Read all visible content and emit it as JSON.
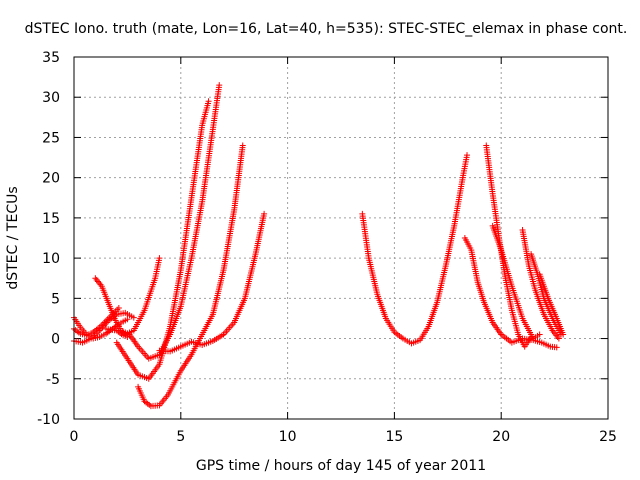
{
  "chart_data": {
    "type": "scatter",
    "title": "dSTEC Iono. truth (mate, Lon=16, Lat=40, h=535): STEC-STEC_elemax in phase cont.",
    "xlabel": "GPS time / hours of day 145 of year 2011",
    "ylabel": "dSTEC  / TECUs",
    "xlim": [
      0,
      25
    ],
    "ylim": [
      -10,
      35
    ],
    "xticks": [
      "0",
      "5",
      "10",
      "15",
      "20",
      "25"
    ],
    "yticks": [
      "-10",
      "-5",
      "0",
      "5",
      "10",
      "15",
      "20",
      "25",
      "30",
      "35"
    ],
    "grid": true,
    "legend": "none",
    "marker": "+",
    "color": "#ff0000",
    "series": [
      {
        "x": [
          0.0,
          0.3,
          0.6,
          0.9,
          1.2,
          1.5,
          1.8,
          2.1,
          2.5
        ],
        "y": [
          2.6,
          1.4,
          0.5,
          0.0,
          0.2,
          0.6,
          1.2,
          1.8,
          2.4
        ]
      },
      {
        "x": [
          0.0,
          0.4,
          0.8,
          1.2,
          1.6,
          2.0,
          2.4,
          2.8
        ],
        "y": [
          -0.3,
          -0.5,
          0.0,
          1.0,
          2.2,
          3.0,
          3.2,
          2.6
        ]
      },
      {
        "x": [
          0.0,
          0.3,
          0.6,
          0.9,
          1.2,
          1.5,
          1.8,
          2.1
        ],
        "y": [
          1.2,
          0.6,
          0.4,
          0.8,
          1.4,
          2.2,
          3.0,
          3.8
        ]
      },
      {
        "x": [
          1.0,
          1.3,
          1.6,
          1.9,
          2.2,
          2.5
        ],
        "y": [
          7.5,
          6.5,
          4.5,
          2.5,
          1.0,
          0.2
        ]
      },
      {
        "x": [
          1.5,
          2.0,
          2.3,
          2.8,
          3.3,
          3.8,
          4.0
        ],
        "y": [
          1.2,
          1.0,
          0.4,
          1.0,
          3.5,
          7.5,
          10.0
        ]
      },
      {
        "x": [
          2.0,
          2.5,
          3.0,
          3.5,
          4.0,
          4.5,
          5.0,
          5.5,
          6.0,
          6.3
        ],
        "y": [
          -0.5,
          -2.5,
          -4.5,
          -5.0,
          -3.2,
          1.5,
          8.5,
          17.5,
          26.5,
          29.5
        ]
      },
      {
        "x": [
          2.2,
          2.6,
          3.0,
          3.5,
          4.0,
          4.5,
          5.0,
          5.5,
          6.0,
          6.5,
          6.8
        ],
        "y": [
          1.0,
          0.5,
          -1.0,
          -2.5,
          -2.0,
          0.5,
          4.0,
          10.0,
          17.0,
          26.0,
          31.5
        ]
      },
      {
        "x": [
          3.0,
          3.3,
          3.6,
          4.0,
          4.4,
          5.0,
          5.5,
          6.0,
          6.5,
          7.0,
          7.5,
          7.9
        ],
        "y": [
          -6.0,
          -7.8,
          -8.4,
          -8.3,
          -7.0,
          -4.0,
          -2.0,
          0.5,
          3.0,
          8.5,
          16.0,
          24.0
        ]
      },
      {
        "x": [
          4.0,
          4.5,
          5.0,
          5.5,
          6.0,
          6.5,
          7.0,
          7.5,
          8.0,
          8.5,
          8.9
        ],
        "y": [
          -1.5,
          -1.6,
          -1.0,
          -0.4,
          -0.8,
          -0.3,
          0.5,
          2.0,
          5.0,
          10.5,
          15.5
        ]
      },
      {
        "x": [
          13.5,
          13.8,
          14.2,
          14.6,
          15.0,
          15.4,
          15.8,
          16.2,
          16.6,
          17.0,
          17.4,
          17.8,
          18.2,
          18.4
        ],
        "y": [
          15.5,
          10.0,
          5.5,
          2.5,
          0.8,
          0.0,
          -0.6,
          -0.2,
          1.5,
          4.5,
          9.0,
          14.0,
          20.0,
          22.8
        ]
      },
      {
        "x": [
          18.3,
          18.6,
          18.9,
          19.2,
          19.6,
          20.0,
          20.5,
          21.0,
          21.5,
          21.9,
          22.3,
          22.6
        ],
        "y": [
          12.5,
          11.0,
          7.0,
          4.5,
          2.0,
          0.5,
          -0.5,
          0.0,
          -0.2,
          -0.5,
          -1.0,
          -1.1
        ]
      },
      {
        "x": [
          19.3,
          19.6,
          19.9,
          20.2,
          20.5,
          20.8,
          21.1,
          21.4
        ],
        "y": [
          24.0,
          18.0,
          12.5,
          7.5,
          3.5,
          0.5,
          -1.0,
          0.2
        ]
      },
      {
        "x": [
          19.6,
          20.0,
          20.5,
          21.0,
          21.5,
          21.8
        ],
        "y": [
          14.0,
          11.0,
          6.5,
          2.5,
          0.0,
          0.5
        ]
      },
      {
        "x": [
          21.0,
          21.3,
          21.6,
          22.0,
          22.4,
          22.7
        ],
        "y": [
          13.5,
          9.0,
          6.0,
          3.0,
          1.0,
          0.0
        ]
      },
      {
        "x": [
          21.4,
          21.7,
          22.0,
          22.4,
          22.8
        ],
        "y": [
          10.5,
          8.0,
          5.0,
          2.5,
          0.5
        ]
      },
      {
        "x": [
          21.8,
          22.2,
          22.6,
          22.9
        ],
        "y": [
          8.0,
          5.0,
          2.5,
          0.5
        ]
      }
    ]
  }
}
